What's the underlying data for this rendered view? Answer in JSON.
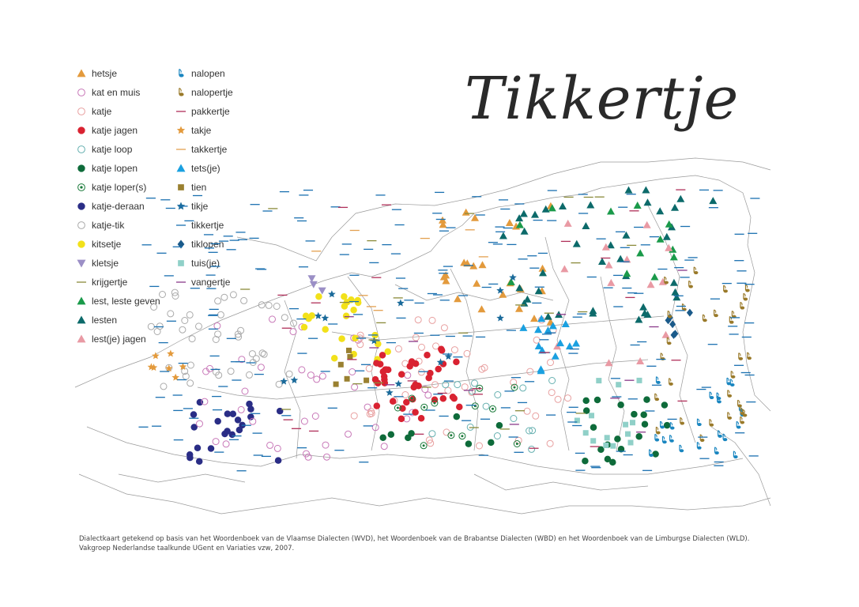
{
  "title": "Tikkertje",
  "caption": {
    "line1": "Dialectkaart getekend op basis van het Woordenboek van de Vlaamse Dialecten (WVD), het Woordenboek van de Brabantse Dialecten (WBD) en het Woordenboek van de Limburgse Dialecten (WLD).",
    "line2": "Vakgroep Nederlandse taalkunde UGent en Variaties vzw, 2007."
  },
  "legend": {
    "col1": [
      {
        "key": "hetsje",
        "label": "hetsje",
        "shape": "triangle",
        "color": "#e39a3c"
      },
      {
        "key": "kat-en-muis",
        "label": "kat en muis",
        "shape": "circle-open",
        "color": "#c878b8"
      },
      {
        "key": "katje",
        "label": "katje",
        "shape": "circle-open",
        "color": "#e8a0a0"
      },
      {
        "key": "katje-jagen",
        "label": "katje jagen",
        "shape": "circle",
        "color": "#d92231"
      },
      {
        "key": "katje-loop",
        "label": "katje loop",
        "shape": "circle-open",
        "color": "#66b0b0"
      },
      {
        "key": "katje-lopen",
        "label": "katje lopen",
        "shape": "circle",
        "color": "#0e6b3a"
      },
      {
        "key": "katje-lopers",
        "label": "katje loper(s)",
        "shape": "circle-dot",
        "color": "#1a7a3a"
      },
      {
        "key": "katje-deraan",
        "label": "katje-deraan",
        "shape": "circle",
        "color": "#2a2d86"
      },
      {
        "key": "katje-tik",
        "label": "katje-tik",
        "shape": "circle-open",
        "color": "#aaaaaa"
      },
      {
        "key": "kitsetje",
        "label": "kitsetje",
        "shape": "circle",
        "color": "#f2e11a"
      },
      {
        "key": "kletsje",
        "label": "kletsje",
        "shape": "triangle-down",
        "color": "#9b8fc6"
      },
      {
        "key": "krijgertje",
        "label": "krijgertje",
        "shape": "dash",
        "color": "#8a8a3a"
      },
      {
        "key": "lest",
        "label": "lest, leste geven",
        "shape": "triangle",
        "color": "#1a9a4a"
      },
      {
        "key": "lesten",
        "label": "lesten",
        "shape": "triangle",
        "color": "#0c6a6a"
      },
      {
        "key": "lestje-jagen",
        "label": "lest(je) jagen",
        "shape": "triangle",
        "color": "#e99aa4"
      }
    ],
    "col2": [
      {
        "key": "nalopen",
        "label": "nalopen",
        "shape": "note",
        "color": "#1a86c0"
      },
      {
        "key": "nalopertje",
        "label": "nalopertje",
        "shape": "note",
        "color": "#9a7a2a"
      },
      {
        "key": "pakkertje",
        "label": "pakkertje",
        "shape": "dash",
        "color": "#b0305a"
      },
      {
        "key": "takje",
        "label": "takje",
        "shape": "star",
        "color": "#e39a3c"
      },
      {
        "key": "takkertje",
        "label": "takkertje",
        "shape": "dash",
        "color": "#e3a050"
      },
      {
        "key": "tetsje",
        "label": "tets(je)",
        "shape": "triangle",
        "color": "#1aa0e0"
      },
      {
        "key": "tien",
        "label": "tien",
        "shape": "square",
        "color": "#9a8030"
      },
      {
        "key": "tikje",
        "label": "tikje",
        "shape": "star",
        "color": "#1a6a9a"
      },
      {
        "key": "tikkertje",
        "label": "tikkertje",
        "shape": "dash",
        "color": "#1a70b0"
      },
      {
        "key": "tiklopen",
        "label": "tiklopen",
        "shape": "diamond",
        "color": "#1a5a8a"
      },
      {
        "key": "tuisje",
        "label": "tuis(je)",
        "shape": "square",
        "color": "#90d0c8"
      },
      {
        "key": "vangertje",
        "label": "vangertje",
        "shape": "dash",
        "color": "#8a3a8a"
      }
    ]
  }
}
